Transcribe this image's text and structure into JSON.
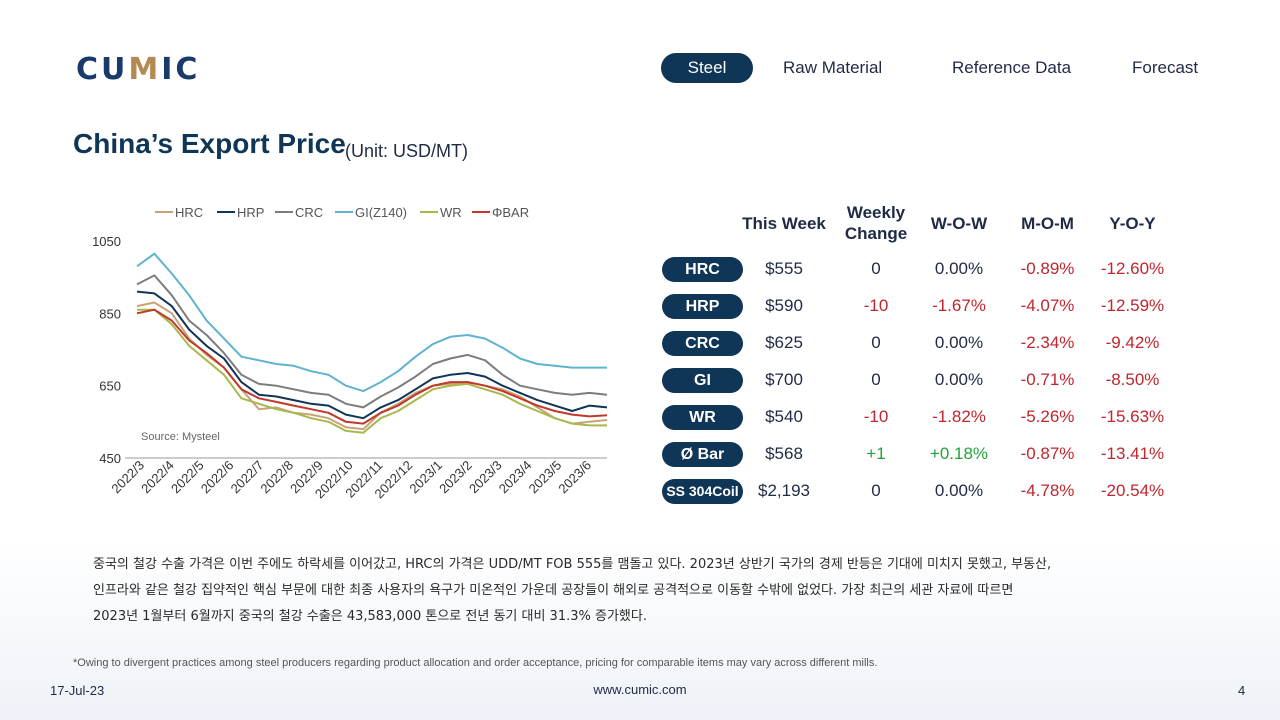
{
  "logo": {
    "text_a": "CU",
    "text_m": "M",
    "text_b": "IC"
  },
  "nav": [
    {
      "label": "Steel",
      "active": true
    },
    {
      "label": "Raw Material",
      "active": false
    },
    {
      "label": "Reference Data",
      "active": false
    },
    {
      "label": "Forecast",
      "active": false
    }
  ],
  "page_title": "China’s Export Price",
  "unit": "(Unit: USD/MT)",
  "chart_data": {
    "type": "line",
    "ylim": [
      450,
      1050
    ],
    "yticks": [
      450,
      650,
      850,
      1050
    ],
    "x_labels": [
      "2022/3",
      "2022/4",
      "2022/5",
      "2022/6",
      "2022/7",
      "2022/8",
      "2022/9",
      "2022/10",
      "2022/11",
      "2022/12",
      "2023/1",
      "2023/2",
      "2023/3",
      "2023/4",
      "2023/5",
      "2023/6"
    ],
    "source_note": "Source: Mysteel",
    "grid": false,
    "legend_position": "top",
    "series": [
      {
        "name": "HRC",
        "color": "#c8a27a",
        "values": [
          870,
          880,
          850,
          780,
          735,
          700,
          640,
          585,
          590,
          575,
          570,
          560,
          535,
          530,
          575,
          600,
          630,
          650,
          655,
          660,
          650,
          640,
          620,
          590,
          560,
          545,
          550,
          555
        ]
      },
      {
        "name": "HRP",
        "color": "#0f3557",
        "values": [
          910,
          905,
          870,
          805,
          760,
          725,
          660,
          625,
          620,
          610,
          600,
          595,
          570,
          560,
          590,
          610,
          640,
          670,
          680,
          685,
          675,
          650,
          630,
          610,
          595,
          580,
          595,
          590
        ]
      },
      {
        "name": "CRC",
        "color": "#7d7d7d",
        "values": [
          930,
          955,
          900,
          830,
          790,
          740,
          680,
          655,
          650,
          640,
          630,
          625,
          600,
          590,
          620,
          645,
          675,
          710,
          725,
          735,
          720,
          680,
          650,
          640,
          630,
          625,
          630,
          625
        ]
      },
      {
        "name": "GI(Z140)",
        "color": "#5fb3d0",
        "values": [
          980,
          1015,
          960,
          900,
          830,
          780,
          730,
          720,
          710,
          705,
          690,
          680,
          650,
          635,
          660,
          690,
          730,
          765,
          785,
          790,
          780,
          755,
          725,
          710,
          705,
          700,
          700,
          700
        ]
      },
      {
        "name": "WR",
        "color": "#a8b84a",
        "values": [
          860,
          860,
          820,
          760,
          720,
          680,
          615,
          600,
          585,
          575,
          560,
          550,
          525,
          520,
          560,
          580,
          610,
          640,
          650,
          655,
          640,
          625,
          600,
          580,
          560,
          545,
          540,
          540
        ]
      },
      {
        "name": "ΦBAR",
        "color": "#c0392b",
        "values": [
          850,
          860,
          830,
          775,
          740,
          700,
          640,
          615,
          605,
          595,
          585,
          575,
          550,
          545,
          575,
          595,
          625,
          650,
          660,
          660,
          650,
          635,
          615,
          595,
          580,
          570,
          565,
          568
        ]
      }
    ]
  },
  "table": {
    "headers": {
      "this_week": "This Week",
      "weekly_change_1": "Weekly",
      "weekly_change_2": "Change",
      "wow": "W-O-W",
      "mom": "M-O-M",
      "yoy": "Y-O-Y"
    },
    "rows": [
      {
        "name": "HRC",
        "this_week": "$555",
        "weekly_change": "0",
        "wow": "0.00%",
        "mom": "-0.89%",
        "yoy": "-12.60%"
      },
      {
        "name": "HRP",
        "this_week": "$590",
        "weekly_change": "-10",
        "wow": "-1.67%",
        "mom": "-4.07%",
        "yoy": "-12.59%"
      },
      {
        "name": "CRC",
        "this_week": "$625",
        "weekly_change": "0",
        "wow": "0.00%",
        "mom": "-2.34%",
        "yoy": "-9.42%"
      },
      {
        "name": "GI",
        "this_week": "$700",
        "weekly_change": "0",
        "wow": "0.00%",
        "mom": "-0.71%",
        "yoy": "-8.50%"
      },
      {
        "name": "WR",
        "this_week": "$540",
        "weekly_change": "-10",
        "wow": "-1.82%",
        "mom": "-5.26%",
        "yoy": "-15.63%"
      },
      {
        "name": "Ø Bar",
        "this_week": "$568",
        "weekly_change": "+1",
        "wow": "+0.18%",
        "mom": "-0.87%",
        "yoy": "-13.41%"
      },
      {
        "name": "SS 304Coil",
        "this_week": "$2,193",
        "weekly_change": "0",
        "wow": "0.00%",
        "mom": "-4.78%",
        "yoy": "-20.54%"
      }
    ]
  },
  "description": [
    "중국의 철강 수출 가격은 이번 주에도 하락세를 이어갔고, HRC의 가격은 UDD/MT FOB 555를 맴돌고 있다. 2023년 상반기 국가의 경제 반등은 기대에 미치지 못했고, 부동산,",
    "인프라와 같은 철강 집약적인 핵심 부문에 대한 최종 사용자의 욕구가 미온적인 가운데 공장들이 해외로 공격적으로 이동할 수밖에 없었다. 가장 최근의 세관 자료에 따르면",
    "2023년 1월부터 6월까지 중국의 철강 수출은 43,583,000 톤으로 전년 동기 대비 31.3% 증가했다."
  ],
  "footnote": "*Owing to divergent practices among steel producers regarding product allocation and order acceptance, pricing for comparable items may vary across different mills.",
  "footer": {
    "date": "17-Jul-23",
    "website": "www.cumic.com",
    "page": "4"
  },
  "colors": {
    "navy": "#0f3557",
    "negative": "#c0262d",
    "positive": "#22a33a",
    "logo_accent": "#b58a52"
  }
}
